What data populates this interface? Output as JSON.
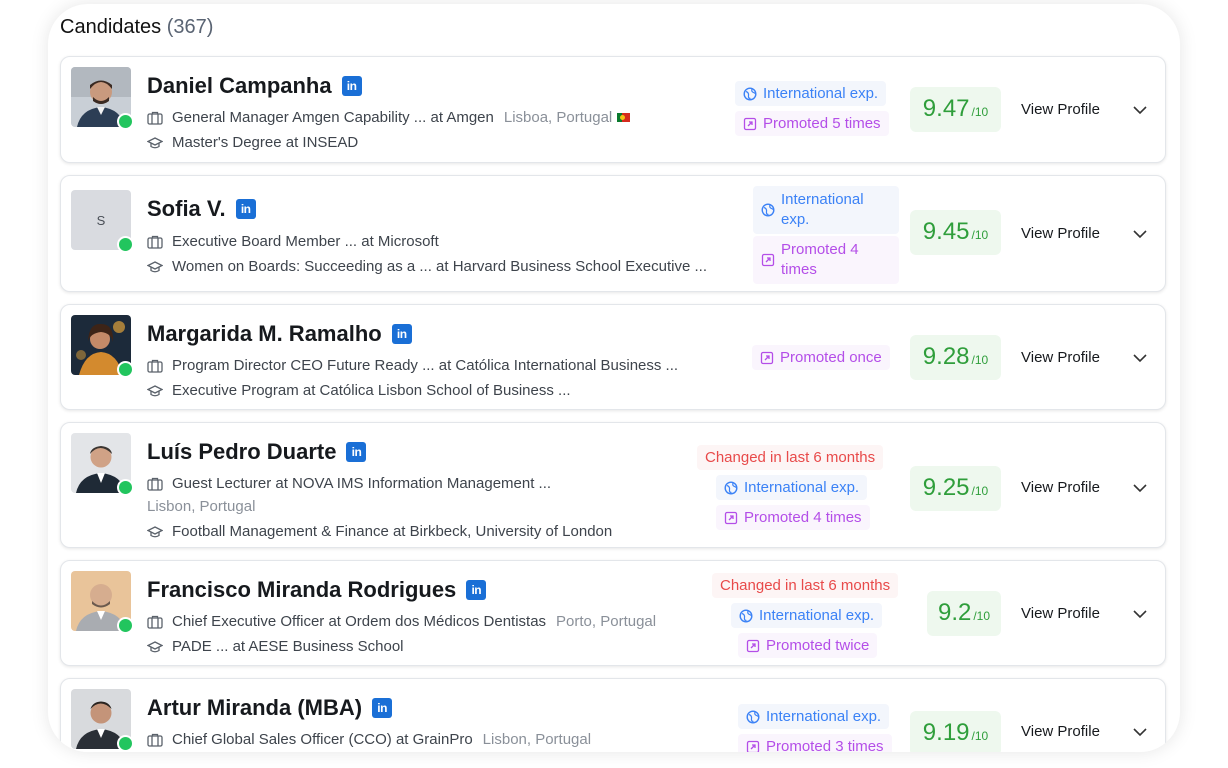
{
  "header": {
    "title": "Candidates",
    "count": "(367)"
  },
  "candidates": [
    {
      "name": "Daniel Campanha",
      "linkedin": "in",
      "job": "General Manager Amgen Capability ... at Amgen",
      "location": "Lisboa, Portugal",
      "education": "Master's Degree at INSEAD",
      "tags": {
        "intl": "International exp.",
        "promo": "Promoted 5 times"
      },
      "score": "9.47",
      "score_den": "/10",
      "view": "View Profile"
    },
    {
      "name": "Sofia V.",
      "initial": "S",
      "linkedin": "in",
      "job": "Executive Board Member ... at Microsoft",
      "education": "Women on Boards: Succeeding as a ... at Harvard Business School Executive ...",
      "tags": {
        "intl_l1": "International",
        "intl_l2": "exp.",
        "promo_l1": "Promoted 4",
        "promo_l2": "times"
      },
      "score": "9.45",
      "score_den": "/10",
      "view": "View Profile"
    },
    {
      "name": "Margarida M. Ramalho",
      "linkedin": "in",
      "job": "Program Director CEO Future Ready ... at Católica International Business ...",
      "education": "Executive Program at Católica Lisbon School of Business ...",
      "tags": {
        "promo": "Promoted once"
      },
      "score": "9.28",
      "score_den": "/10",
      "view": "View Profile"
    },
    {
      "name": "Luís Pedro Duarte",
      "linkedin": "in",
      "job": "Guest Lecturer at NOVA IMS Information Management ...",
      "location": "Lisbon, Portugal",
      "education": "Football Management & Finance at Birkbeck, University of London",
      "tags": {
        "changed": "Changed in last 6 months",
        "intl": "International exp.",
        "promo": "Promoted 4 times"
      },
      "score": "9.25",
      "score_den": "/10",
      "view": "View Profile"
    },
    {
      "name": "Francisco Miranda Rodrigues",
      "linkedin": "in",
      "job": "Chief Executive Officer at Ordem dos Médicos Dentistas",
      "location": "Porto, Portugal",
      "education": "PADE ... at AESE Business School",
      "tags": {
        "changed": "Changed in last 6 months",
        "intl": "International exp.",
        "promo": "Promoted twice"
      },
      "score": "9.2",
      "score_den": "/10",
      "view": "View Profile"
    },
    {
      "name": "Artur Miranda (MBA)",
      "linkedin": "in",
      "job": "Chief Global Sales Officer (CCO) at GrainPro",
      "location": "Lisbon, Portugal",
      "tags": {
        "intl": "International exp.",
        "promo": "Promoted 3 times"
      },
      "score": "9.19",
      "score_den": "/10",
      "view": "View Profile"
    }
  ],
  "colors": {
    "score_green": "#2f9e3b",
    "intl_blue": "#3b82f6",
    "promo_purple": "#b44ee8",
    "changed_red": "#e84a4a",
    "online": "#22c55e",
    "linkedin": "#1a6fd6"
  }
}
